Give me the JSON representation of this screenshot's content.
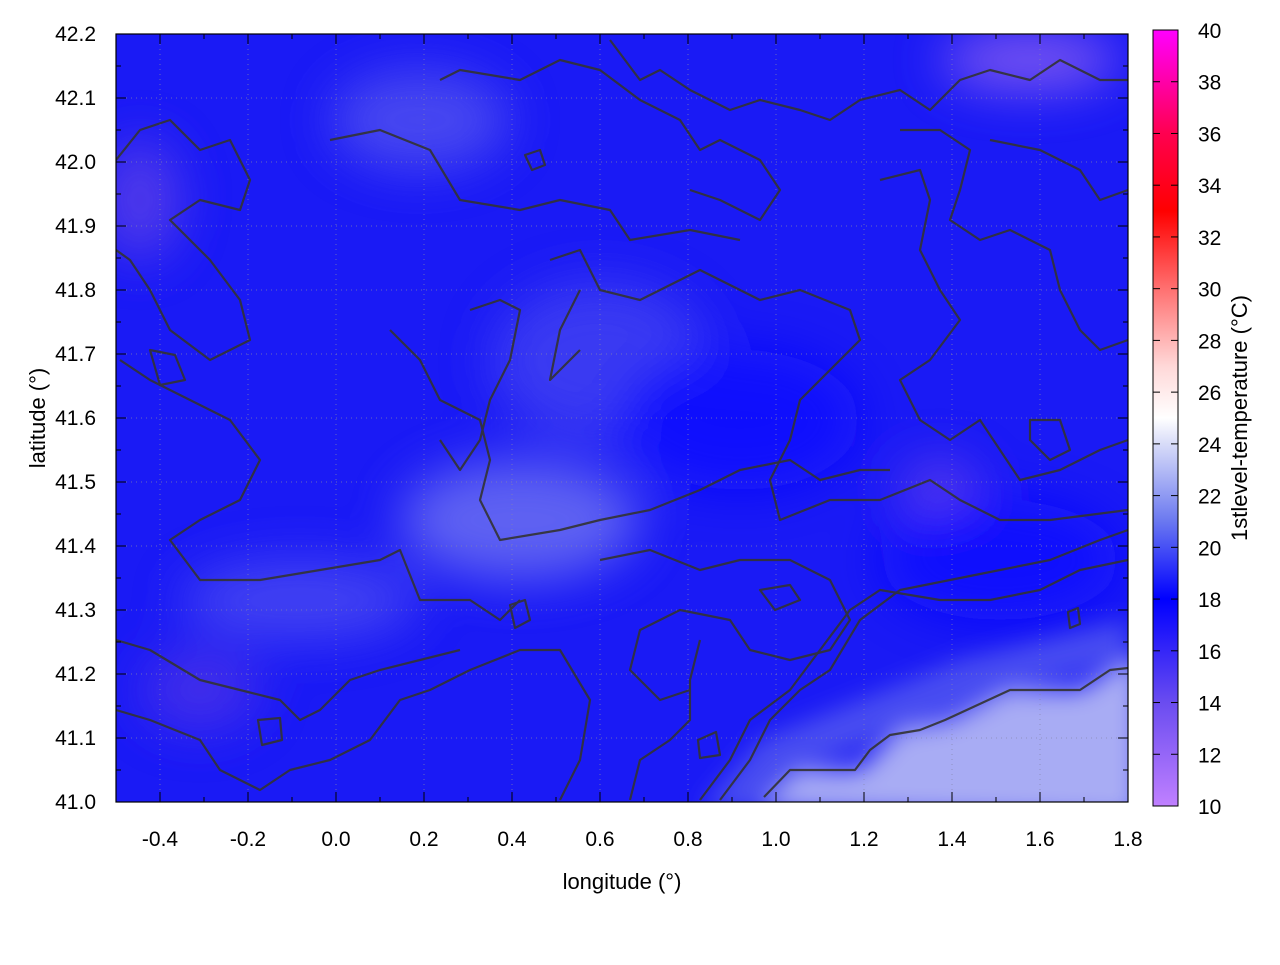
{
  "chart_data": {
    "type": "heatmap",
    "title": "",
    "xlabel": "longitude (°)",
    "ylabel": "latitude (°)",
    "xlim": [
      -0.5,
      1.8
    ],
    "ylim": [
      41.0,
      42.2
    ],
    "xticks": [
      "-0.4",
      "-0.2",
      "0.0",
      "0.2",
      "0.4",
      "0.6",
      "0.8",
      "1.0",
      "1.2",
      "1.4",
      "1.6",
      "1.8"
    ],
    "yticks": [
      "41.0",
      "41.1",
      "41.2",
      "41.3",
      "41.4",
      "41.5",
      "41.6",
      "41.7",
      "41.8",
      "41.9",
      "42.0",
      "42.1",
      "42.2"
    ],
    "grid": true,
    "overlay": "contour lines",
    "colorbar": {
      "label": "1stlevel-temperature (°C)",
      "range": [
        10,
        40
      ],
      "ticks": [
        "10",
        "12",
        "14",
        "16",
        "18",
        "20",
        "22",
        "24",
        "26",
        "28",
        "30",
        "32",
        "34",
        "36",
        "38",
        "40"
      ],
      "stops": [
        {
          "value": 10,
          "color": "#c080ff"
        },
        {
          "value": 14,
          "color": "#6a4cf0"
        },
        {
          "value": 18,
          "color": "#0000ff"
        },
        {
          "value": 21,
          "color": "#6a78f0"
        },
        {
          "value": 24,
          "color": "#d8dcf8"
        },
        {
          "value": 25,
          "color": "#ffffff"
        },
        {
          "value": 27,
          "color": "#ffd8d8"
        },
        {
          "value": 30,
          "color": "#ff7070"
        },
        {
          "value": 33,
          "color": "#ff0000"
        },
        {
          "value": 36,
          "color": "#ff0050"
        },
        {
          "value": 40,
          "color": "#ff00ff"
        }
      ]
    },
    "observed": "Most of the area is about 16-20 °C (blue); the coastal sea area in the lower right, about lon 1.0-1.8 and lat 41.0-41.2, is about 21-23 °C (light blue); a few small spots in the upper right are about 13-14 °C (purple)"
  }
}
